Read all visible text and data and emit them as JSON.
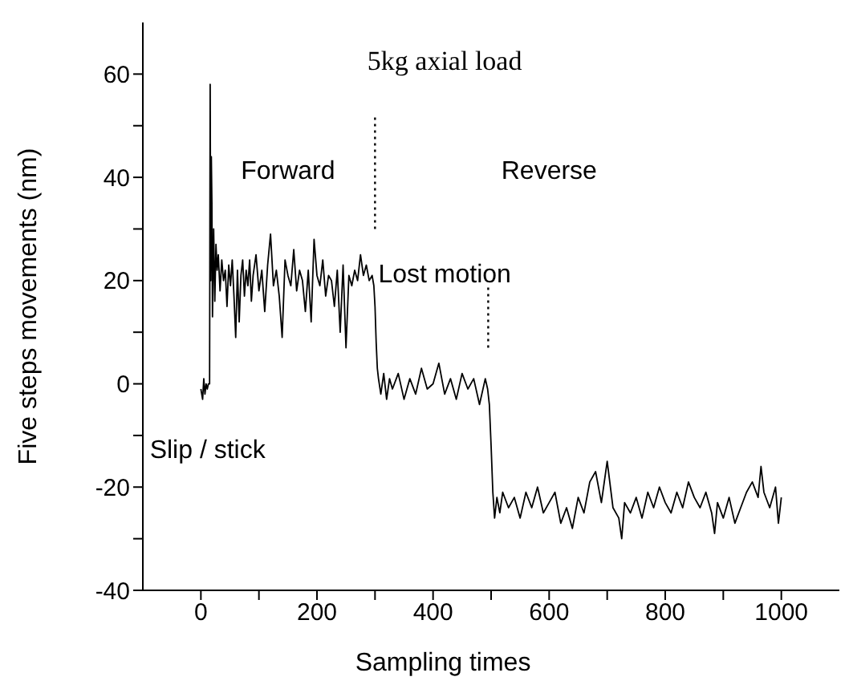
{
  "chart_data": {
    "type": "line",
    "xlabel": "Sampling times",
    "ylabel": "Five steps movements (nm)",
    "annotations": [
      "5kg axial load",
      "Forward",
      "Reverse",
      "Lost motion",
      "Slip / stick"
    ],
    "xlim": [
      -100,
      1100
    ],
    "xticks": [
      0,
      {
        "value": 100,
        "label": null
      },
      200,
      {
        "value": 300,
        "label": null
      },
      400,
      {
        "value": 500,
        "label": null
      },
      600,
      {
        "value": 700,
        "label": null
      },
      800,
      {
        "value": 900,
        "label": null
      },
      1000
    ],
    "ylim": [
      -40,
      70
    ],
    "yticks": [
      -40,
      {
        "value": -30,
        "label": null
      },
      -20,
      {
        "value": -10,
        "label": null
      },
      0,
      {
        "value": 10,
        "label": null
      },
      20,
      {
        "value": 30,
        "label": null
      },
      40,
      {
        "value": 50,
        "label": null
      },
      60
    ],
    "marker": "none",
    "line_style": "solid",
    "series": [
      {
        "color": "#000000",
        "x": [
          0,
          3,
          5,
          7,
          9,
          11,
          13,
          15,
          16,
          17,
          18,
          19,
          20,
          22,
          24,
          26,
          28,
          30,
          33,
          36,
          39,
          42,
          45,
          48,
          51,
          54,
          57,
          60,
          63,
          66,
          69,
          72,
          75,
          78,
          81,
          84,
          87,
          90,
          95,
          100,
          105,
          110,
          115,
          120,
          125,
          130,
          135,
          140,
          145,
          150,
          155,
          160,
          165,
          170,
          175,
          180,
          185,
          190,
          195,
          200,
          205,
          210,
          215,
          220,
          225,
          230,
          235,
          240,
          245,
          250,
          255,
          260,
          265,
          270,
          275,
          280,
          285,
          290,
          295,
          298,
          300,
          302,
          304,
          306,
          310,
          315,
          320,
          325,
          330,
          340,
          350,
          360,
          370,
          380,
          390,
          400,
          410,
          420,
          430,
          440,
          450,
          460,
          470,
          480,
          490,
          494,
          497,
          500,
          503,
          506,
          510,
          515,
          520,
          530,
          540,
          550,
          560,
          570,
          580,
          590,
          600,
          610,
          620,
          630,
          640,
          650,
          660,
          670,
          680,
          690,
          700,
          710,
          720,
          725,
          730,
          740,
          750,
          760,
          770,
          780,
          790,
          800,
          810,
          820,
          830,
          840,
          850,
          860,
          870,
          880,
          885,
          890,
          900,
          910,
          920,
          930,
          940,
          950,
          960,
          965,
          970,
          980,
          990,
          995,
          1000
        ],
        "values": [
          -1,
          -3,
          1,
          -2,
          0,
          -1,
          0,
          0,
          58,
          20,
          44,
          35,
          13,
          30,
          16,
          27,
          22,
          25,
          18,
          24,
          20,
          22,
          15,
          23,
          19,
          24,
          17,
          9,
          22,
          12,
          21,
          24,
          17,
          22,
          19,
          24,
          16,
          21,
          25,
          18,
          22,
          14,
          23,
          29,
          19,
          22,
          17,
          9,
          24,
          21,
          19,
          26,
          18,
          22,
          20,
          14,
          22,
          12,
          28,
          21,
          19,
          24,
          17,
          21,
          20,
          15,
          22,
          10,
          23,
          7,
          21,
          19,
          22,
          20,
          25,
          21,
          23,
          20,
          21,
          19,
          15,
          8,
          3,
          1,
          -2,
          2,
          -3,
          1,
          -1,
          2,
          -3,
          1,
          -2,
          3,
          -1,
          0,
          4,
          -2,
          1,
          -3,
          2,
          -1,
          1,
          -4,
          1,
          -1,
          -4,
          -12,
          -21,
          -26,
          -22,
          -25,
          -21,
          -24,
          -22,
          -26,
          -21,
          -24,
          -20,
          -25,
          -23,
          -21,
          -27,
          -24,
          -28,
          -22,
          -25,
          -19,
          -17,
          -23,
          -15,
          -24,
          -26,
          -30,
          -23,
          -25,
          -22,
          -26,
          -21,
          -24,
          -20,
          -23,
          -25,
          -21,
          -24,
          -19,
          -22,
          -24,
          -21,
          -25,
          -29,
          -23,
          -26,
          -22,
          -27,
          -24,
          -21,
          -19,
          -22,
          -16,
          -21,
          -24,
          -20,
          -27,
          -22
        ]
      },
      {
        "color": "#000000",
        "line_style": "dotted",
        "x": [
          300,
          300
        ],
        "values": [
          30,
          52
        ]
      },
      {
        "color": "#000000",
        "line_style": "dotted",
        "x": [
          495,
          495
        ],
        "values": [
          7,
          19
        ]
      }
    ]
  }
}
